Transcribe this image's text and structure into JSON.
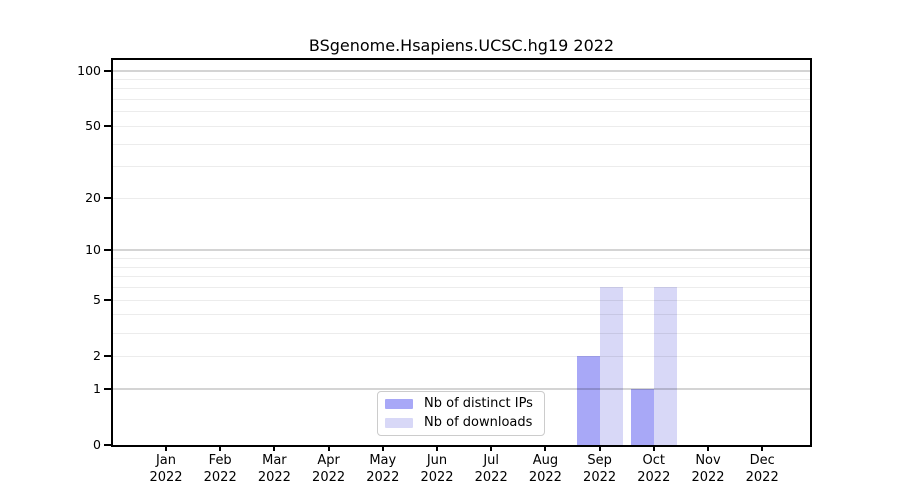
{
  "chart_data": {
    "type": "bar",
    "title": "BSgenome.Hsapiens.UCSC.hg19 2022",
    "categories": [
      {
        "month": "Jan",
        "year": "2022"
      },
      {
        "month": "Feb",
        "year": "2022"
      },
      {
        "month": "Mar",
        "year": "2022"
      },
      {
        "month": "Apr",
        "year": "2022"
      },
      {
        "month": "May",
        "year": "2022"
      },
      {
        "month": "Jun",
        "year": "2022"
      },
      {
        "month": "Jul",
        "year": "2022"
      },
      {
        "month": "Aug",
        "year": "2022"
      },
      {
        "month": "Sep",
        "year": "2022"
      },
      {
        "month": "Oct",
        "year": "2022"
      },
      {
        "month": "Nov",
        "year": "2022"
      },
      {
        "month": "Dec",
        "year": "2022"
      }
    ],
    "series": [
      {
        "name": "Nb of distinct IPs",
        "color": "#a8a8f7",
        "values": [
          0,
          0,
          0,
          0,
          0,
          0,
          0,
          0,
          2,
          1,
          0,
          0
        ]
      },
      {
        "name": "Nb of downloads",
        "color": "#d8d8f7",
        "values": [
          0,
          0,
          0,
          0,
          0,
          0,
          0,
          0,
          6,
          6,
          0,
          0
        ]
      }
    ],
    "yscale": "log1p",
    "ylim": [
      0,
      114
    ],
    "yticks": [
      0,
      1,
      2,
      5,
      10,
      20,
      50,
      100
    ],
    "major_gridlines": [
      1,
      10,
      100
    ],
    "minor_gridlines": [
      2,
      3,
      4,
      5,
      6,
      7,
      8,
      9,
      20,
      30,
      40,
      50,
      60,
      70,
      80,
      90
    ],
    "grid": true,
    "legend": {
      "position": "lower center",
      "border_color": "#cccccc"
    },
    "colors": {
      "major_grid": "#c9c9c9",
      "minor_grid": "#ececec",
      "spine": "#000000",
      "background": "#ffffff"
    }
  }
}
